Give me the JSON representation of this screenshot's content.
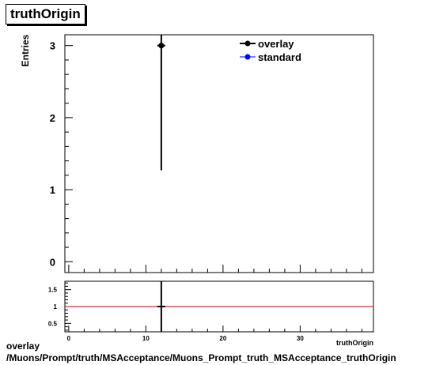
{
  "chart_data": [
    {
      "type": "scatter",
      "title": "truthOrigin",
      "xlabel": "",
      "ylabel": "Entries",
      "xlim": [
        -0.5,
        39.5
      ],
      "ylim": [
        -0.15,
        3.15
      ],
      "yticks": [
        0,
        1,
        2,
        3
      ],
      "legend_placement": "top-right",
      "series": [
        {
          "name": "overlay",
          "color": "#000000",
          "marker": "circle",
          "points": [
            {
              "x": 12,
              "y": 3,
              "yerr_low": 1.27,
              "yerr_high": 3.15
            }
          ]
        },
        {
          "name": "standard",
          "color": "#0000ff",
          "marker": "circle",
          "points": [
            {
              "x": 12,
              "y": 3
            }
          ]
        }
      ]
    },
    {
      "type": "line",
      "title": "",
      "xlabel": "truthOrigin",
      "ylabel": "",
      "xlim": [
        -0.5,
        39.5
      ],
      "ylim": [
        0.25,
        1.75
      ],
      "yticks": [
        0.5,
        1,
        1.5
      ],
      "xticks": [
        0,
        10,
        20,
        30
      ],
      "reference_line": {
        "y": 1,
        "color": "#cc0000"
      },
      "series": [
        {
          "name": "",
          "color": "#000000",
          "points": [
            {
              "x": 12,
              "y": 1,
              "yerr_low": 0.25,
              "yerr_high": 1.75
            }
          ]
        }
      ]
    }
  ],
  "footer": {
    "line1": "overlay",
    "line2": "/Muons/Prompt/truth/MSAcceptance/Muons_Prompt_truth_MSAcceptance_truthOrigin"
  }
}
